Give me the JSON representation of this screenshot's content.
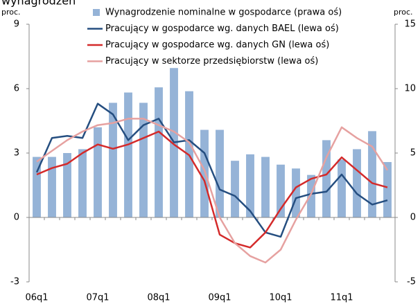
{
  "chart_data": {
    "type": "combo",
    "title": "wynagrodzeń",
    "y_label": "proc.",
    "y2_label": "proc.",
    "categories": [
      "06q1",
      null,
      null,
      null,
      "07q1",
      null,
      null,
      null,
      "08q1",
      null,
      null,
      null,
      "09q1",
      null,
      null,
      null,
      "10q1",
      null,
      null,
      null,
      "11q1",
      null,
      null,
      null
    ],
    "ylim": [
      -3,
      9
    ],
    "yticks": [
      -3,
      0,
      3,
      6,
      9
    ],
    "y2lim": [
      -5,
      15
    ],
    "y2ticks": [
      -5,
      0,
      5,
      10,
      15
    ],
    "legend": "top",
    "series": [
      {
        "name": "Wynagrodzenie nominalne w gospodarce (prawa oś)",
        "type": "bar",
        "axis": "y2",
        "color": "#95b3d7",
        "values": [
          4.7,
          4.7,
          5.0,
          5.3,
          7.0,
          8.9,
          9.7,
          8.9,
          10.1,
          11.6,
          9.8,
          6.8,
          6.8,
          4.4,
          4.9,
          4.7,
          4.1,
          3.8,
          3.3,
          6.0,
          4.5,
          5.3,
          6.7,
          4.3
        ]
      },
      {
        "name": "Pracujący w gospodarce wg. danych BAEL (lewa oś)",
        "type": "line",
        "axis": "y",
        "color": "#254e80",
        "values": [
          2.1,
          3.7,
          3.8,
          3.7,
          5.3,
          4.8,
          3.6,
          4.3,
          4.6,
          3.5,
          3.6,
          3.0,
          1.3,
          1.0,
          0.3,
          -0.7,
          -0.9,
          0.9,
          1.1,
          1.2,
          2.0,
          1.1,
          0.6,
          0.8
        ]
      },
      {
        "name": "Pracujący w gospodarce wg. danych GN (lewa oś)",
        "type": "line",
        "axis": "y",
        "color": "#d42a2a",
        "values": [
          2.0,
          2.3,
          2.5,
          3.0,
          3.4,
          3.2,
          3.4,
          3.7,
          4.0,
          3.4,
          2.9,
          1.7,
          -0.8,
          -1.2,
          -1.4,
          -0.7,
          0.4,
          1.4,
          1.8,
          2.0,
          2.8,
          2.2,
          1.6,
          1.4
        ]
      },
      {
        "name": "Pracujący w sektorze przedsiębiorstw (lewa oś)",
        "type": "line",
        "axis": "y",
        "color": "#e6a1a0",
        "values": [
          2.6,
          3.1,
          3.6,
          4.0,
          4.3,
          4.4,
          4.6,
          4.6,
          4.3,
          4.0,
          3.5,
          2.2,
          0.0,
          -1.2,
          -1.8,
          -2.1,
          -1.5,
          -0.1,
          1.1,
          2.8,
          4.2,
          3.7,
          3.3,
          2.2
        ]
      }
    ]
  }
}
